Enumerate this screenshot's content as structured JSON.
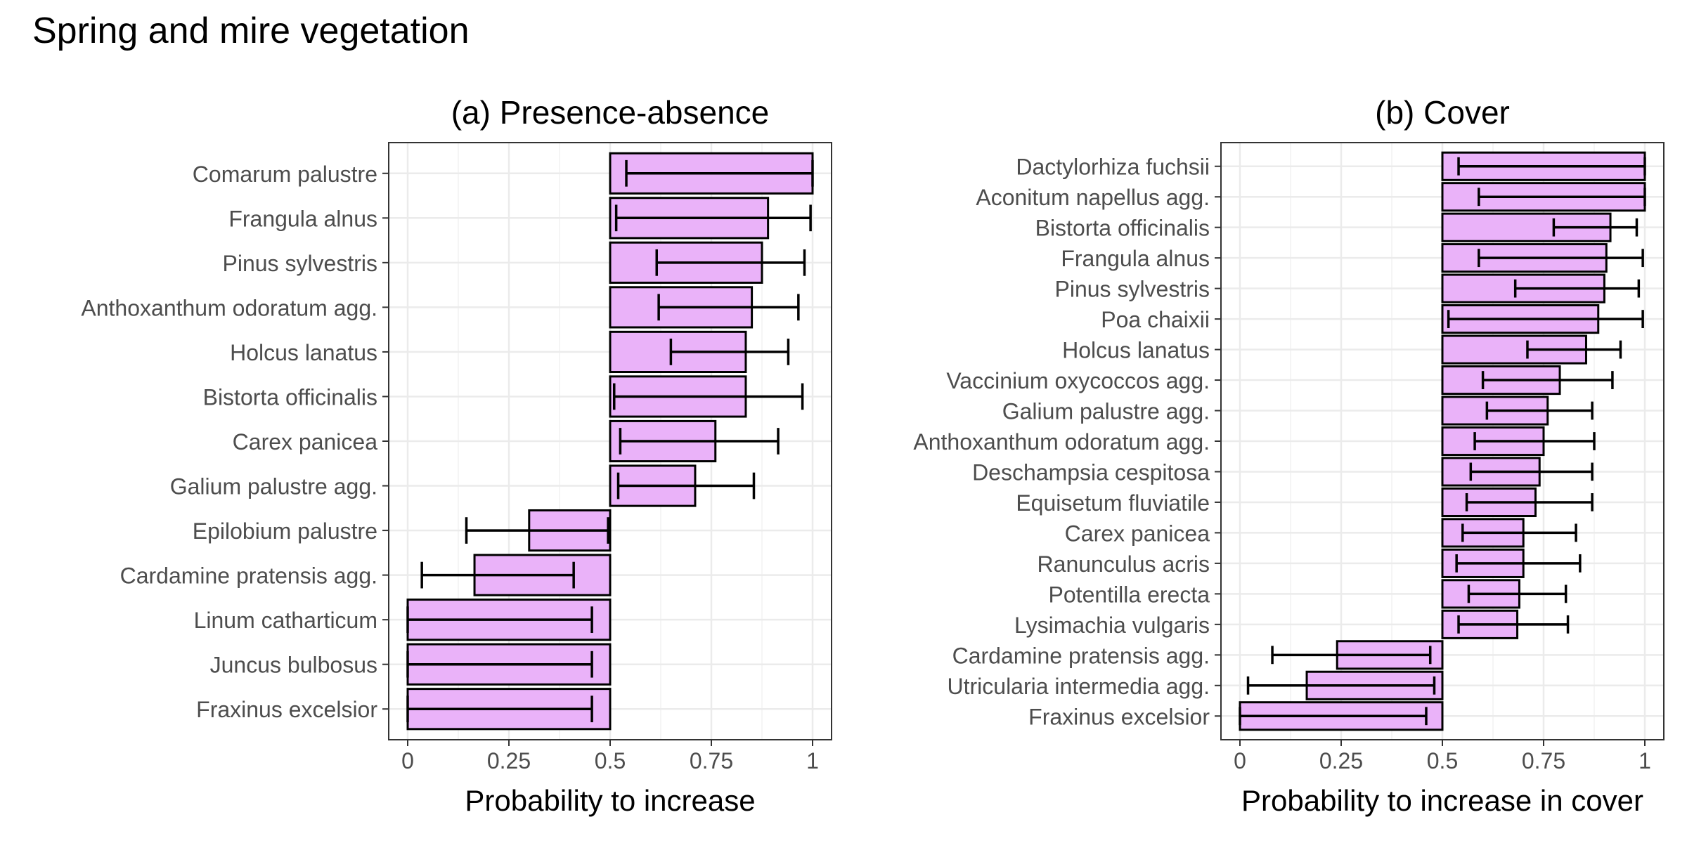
{
  "figure": {
    "title": "Spring and mire vegetation"
  },
  "chart_data": [
    {
      "type": "bar",
      "orientation": "horizontal",
      "title": "(a) Presence-absence",
      "xlabel": "Probability to increase",
      "ylabel": "",
      "xlim": [
        0,
        1
      ],
      "baseline": 0.5,
      "xticks": [
        0,
        0.25,
        0.5,
        0.75,
        1
      ],
      "xtick_labels": [
        "0",
        "0.25",
        "0.5",
        "0.75",
        "1"
      ],
      "grid": true,
      "bar_color": "#eab2f9",
      "categories": [
        "Comarum palustre",
        "Frangula alnus",
        "Pinus sylvestris",
        "Anthoxanthum odoratum agg.",
        "Holcus lanatus",
        "Bistorta officinalis",
        "Carex panicea",
        "Galium palustre agg.",
        "Epilobium palustre",
        "Cardamine pratensis agg.",
        "Linum catharticum",
        "Juncus bulbosus",
        "Fraxinus excelsior"
      ],
      "values": [
        1.0,
        0.89,
        0.875,
        0.85,
        0.835,
        0.835,
        0.76,
        0.71,
        0.3,
        0.165,
        0.0,
        0.0,
        0.0
      ],
      "ci_lower": [
        0.54,
        0.515,
        0.615,
        0.62,
        0.65,
        0.51,
        0.525,
        0.52,
        0.145,
        0.035,
        0.0,
        0.0,
        0.0
      ],
      "ci_upper": [
        1.0,
        0.995,
        0.98,
        0.965,
        0.94,
        0.975,
        0.915,
        0.855,
        0.495,
        0.41,
        0.455,
        0.455,
        0.455
      ]
    },
    {
      "type": "bar",
      "orientation": "horizontal",
      "title": "(b) Cover",
      "xlabel": "Probability to increase in cover",
      "ylabel": "",
      "xlim": [
        0,
        1
      ],
      "baseline": 0.5,
      "xticks": [
        0,
        0.25,
        0.5,
        0.75,
        1
      ],
      "xtick_labels": [
        "0",
        "0.25",
        "0.5",
        "0.75",
        "1"
      ],
      "grid": true,
      "bar_color": "#eab2f9",
      "categories": [
        "Dactylorhiza fuchsii",
        "Aconitum napellus agg.",
        "Bistorta officinalis",
        "Frangula alnus",
        "Pinus sylvestris",
        "Poa chaixii",
        "Holcus lanatus",
        "Vaccinium oxycoccos agg.",
        "Galium palustre agg.",
        "Anthoxanthum odoratum agg.",
        "Deschampsia cespitosa",
        "Equisetum fluviatile",
        "Carex panicea",
        "Ranunculus acris",
        "Potentilla erecta",
        "Lysimachia vulgaris",
        "Cardamine pratensis agg.",
        "Utricularia intermedia agg.",
        "Fraxinus excelsior"
      ],
      "values": [
        1.0,
        1.0,
        0.915,
        0.905,
        0.9,
        0.885,
        0.855,
        0.79,
        0.76,
        0.75,
        0.74,
        0.73,
        0.7,
        0.7,
        0.69,
        0.685,
        0.24,
        0.165,
        0.0
      ],
      "ci_lower": [
        0.54,
        0.59,
        0.775,
        0.59,
        0.68,
        0.515,
        0.71,
        0.6,
        0.61,
        0.58,
        0.57,
        0.56,
        0.55,
        0.535,
        0.565,
        0.54,
        0.08,
        0.02,
        0.0
      ],
      "ci_upper": [
        1.0,
        1.0,
        0.98,
        0.995,
        0.985,
        0.995,
        0.94,
        0.92,
        0.87,
        0.875,
        0.87,
        0.87,
        0.83,
        0.84,
        0.805,
        0.81,
        0.47,
        0.48,
        0.46
      ]
    }
  ]
}
